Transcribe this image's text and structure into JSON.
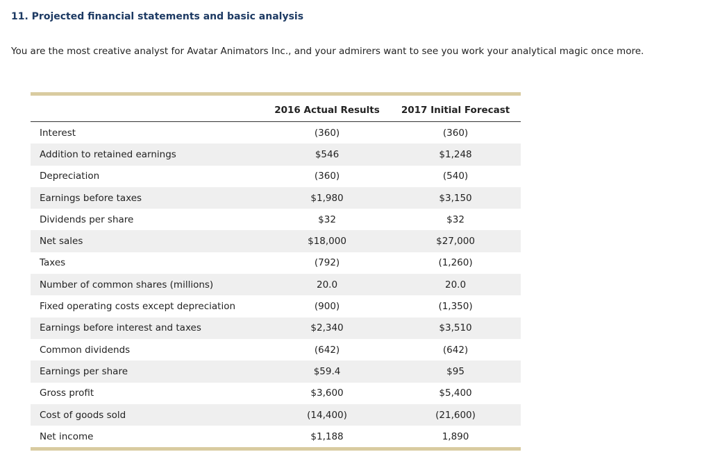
{
  "header": {
    "title": "11. Projected financial statements and basic analysis"
  },
  "intro": "You are the most creative analyst for Avatar Animators Inc., and your admirers want to see you work your analytical magic once more.",
  "table": {
    "columns": [
      "2016 Actual Results",
      "2017 Initial Forecast"
    ],
    "rows": [
      [
        "Interest",
        "(360)",
        "(360)"
      ],
      [
        "Addition to retained earnings",
        "$546",
        "$1,248"
      ],
      [
        "Depreciation",
        "(360)",
        "(540)"
      ],
      [
        "Earnings before taxes",
        "$1,980",
        "$3,150"
      ],
      [
        "Dividends per share",
        "$32",
        "$32"
      ],
      [
        "Net sales",
        "$18,000",
        "$27,000"
      ],
      [
        "Taxes",
        "(792)",
        "(1,260)"
      ],
      [
        "Number of common shares (millions)",
        "20.0",
        "20.0"
      ],
      [
        "Fixed operating costs except depreciation",
        "(900)",
        "(1,350)"
      ],
      [
        "Earnings before interest and taxes",
        "$2,340",
        "$3,510"
      ],
      [
        "Common dividends",
        "(642)",
        "(642)"
      ],
      [
        "Earnings per share",
        "$59.4",
        "$95"
      ],
      [
        "Gross profit",
        "$3,600",
        "$5,400"
      ],
      [
        "Cost of goods sold",
        "(14,400)",
        "(21,600)"
      ],
      [
        "Net income",
        "$1,188",
        "1,890"
      ]
    ]
  }
}
